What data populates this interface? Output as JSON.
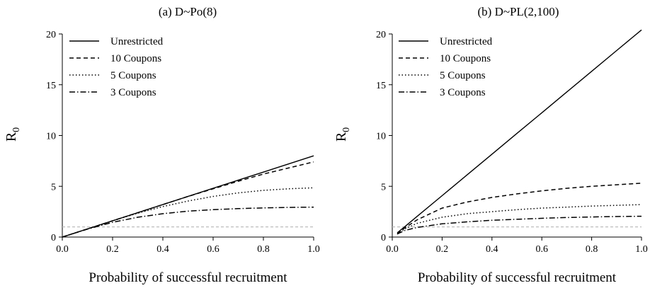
{
  "chart_data": [
    {
      "type": "line",
      "title": "(a) D~Po(8)",
      "xlabel": "Probability of successful recruitment",
      "ylabel": "R",
      "ylabel_sub": "0",
      "xlim": [
        0,
        1
      ],
      "ylim": [
        0,
        20
      ],
      "xticks": [
        "0.0",
        "0.2",
        "0.4",
        "0.6",
        "0.8",
        "1.0"
      ],
      "xtick_values": [
        0,
        0.2,
        0.4,
        0.6,
        0.8,
        1.0
      ],
      "yticks": [
        "0",
        "5",
        "10",
        "15",
        "20"
      ],
      "ytick_values": [
        0,
        5,
        10,
        15,
        20
      ],
      "reference_line_y": 1,
      "legend_position": "top-left",
      "x": [
        0,
        0.1,
        0.2,
        0.3,
        0.4,
        0.5,
        0.6,
        0.7,
        0.8,
        0.9,
        1.0
      ],
      "series": [
        {
          "name": "Unrestricted",
          "style": "solid",
          "values": [
            0,
            0.8,
            1.6,
            2.4,
            3.2,
            4.0,
            4.8,
            5.6,
            6.4,
            7.2,
            8.0
          ]
        },
        {
          "name": "10 Coupons",
          "style": "dashed",
          "values": [
            0,
            0.8,
            1.6,
            2.4,
            3.2,
            4.0,
            4.75,
            5.5,
            6.2,
            6.8,
            7.4
          ]
        },
        {
          "name": "5 Coupons",
          "style": "dotted",
          "values": [
            0,
            0.8,
            1.6,
            2.35,
            3.0,
            3.55,
            4.0,
            4.35,
            4.6,
            4.75,
            4.85
          ]
        },
        {
          "name": "3 Coupons",
          "style": "dashdot",
          "values": [
            0,
            0.78,
            1.45,
            1.95,
            2.3,
            2.55,
            2.7,
            2.8,
            2.87,
            2.92,
            2.95
          ]
        }
      ]
    },
    {
      "type": "line",
      "title": "(b) D~PL(2,100)",
      "xlabel": "Probability of successful recruitment",
      "ylabel": "R",
      "ylabel_sub": "0",
      "xlim": [
        0,
        1
      ],
      "ylim": [
        0,
        20
      ],
      "xticks": [
        "0.0",
        "0.2",
        "0.4",
        "0.6",
        "0.8",
        "1.0"
      ],
      "xtick_values": [
        0,
        0.2,
        0.4,
        0.6,
        0.8,
        1.0
      ],
      "yticks": [
        "0",
        "5",
        "10",
        "15",
        "20"
      ],
      "ytick_values": [
        0,
        5,
        10,
        15,
        20
      ],
      "reference_line_y": 1,
      "legend_position": "top-left",
      "x": [
        0.02,
        0.05,
        0.1,
        0.2,
        0.3,
        0.4,
        0.5,
        0.6,
        0.7,
        0.8,
        0.9,
        1.0
      ],
      "series": [
        {
          "name": "Unrestricted",
          "style": "solid",
          "values": [
            0.41,
            1.02,
            2.04,
            4.08,
            6.12,
            8.16,
            10.2,
            12.24,
            14.28,
            16.32,
            18.36,
            20.4
          ]
        },
        {
          "name": "10 Coupons",
          "style": "dashed",
          "values": [
            0.3,
            0.9,
            1.7,
            2.85,
            3.45,
            3.9,
            4.25,
            4.55,
            4.8,
            5.0,
            5.15,
            5.3
          ]
        },
        {
          "name": "5 Coupons",
          "style": "dotted",
          "values": [
            0.3,
            0.8,
            1.35,
            1.95,
            2.3,
            2.5,
            2.7,
            2.85,
            2.95,
            3.05,
            3.12,
            3.2
          ]
        },
        {
          "name": "3 Coupons",
          "style": "dashdot",
          "values": [
            0.3,
            0.65,
            0.95,
            1.3,
            1.5,
            1.65,
            1.75,
            1.85,
            1.92,
            1.98,
            2.02,
            2.05
          ]
        }
      ]
    }
  ]
}
